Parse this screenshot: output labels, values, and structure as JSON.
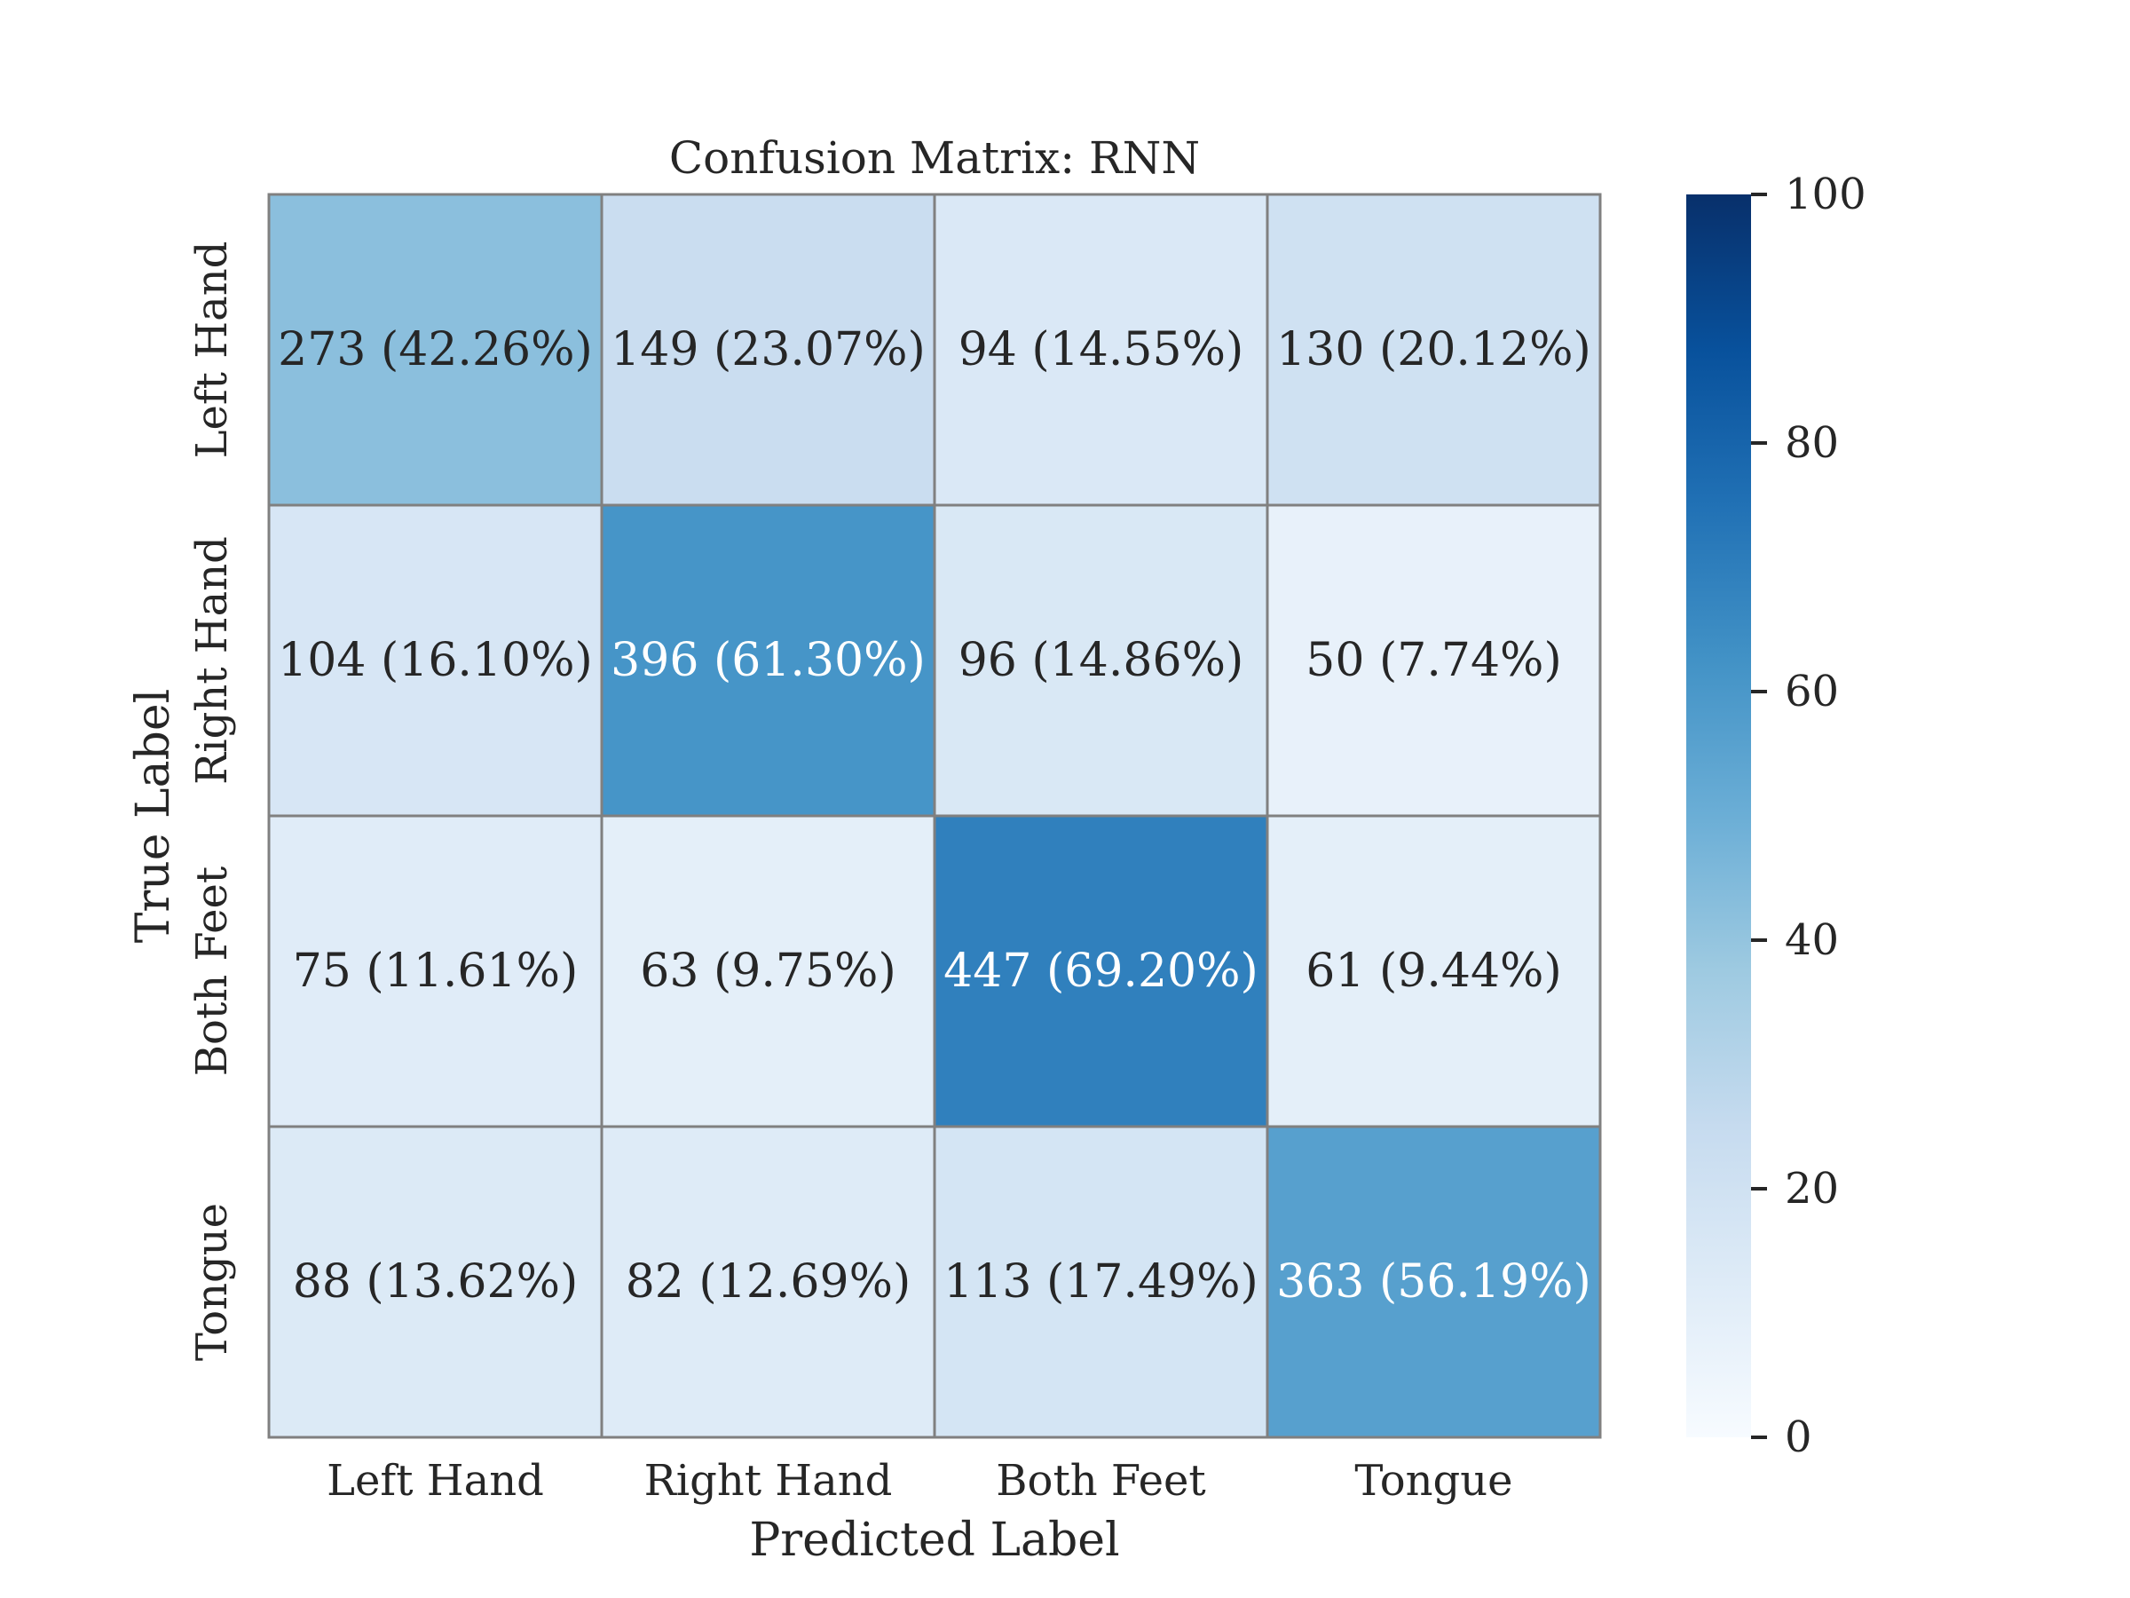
{
  "chart_data": {
    "type": "heatmap",
    "title": "Confusion Matrix: RNN",
    "xlabel": "Predicted Label",
    "ylabel": "True Label",
    "x_categories": [
      "Left Hand",
      "Right Hand",
      "Both Feet",
      "Tongue"
    ],
    "y_categories": [
      "Left Hand",
      "Right Hand",
      "Both Feet",
      "Tongue"
    ],
    "counts": [
      [
        273,
        149,
        94,
        130
      ],
      [
        104,
        396,
        96,
        50
      ],
      [
        75,
        63,
        447,
        61
      ],
      [
        88,
        82,
        113,
        363
      ]
    ],
    "cell_labels": [
      [
        "273 (42.26%)",
        "149 (23.07%)",
        "94 (14.55%)",
        "130 (20.12%)"
      ],
      [
        "104 (16.10%)",
        "396 (61.30%)",
        "96 (14.86%)",
        "50 (7.74%)"
      ],
      [
        "75 (11.61%)",
        "63 (9.75%)",
        "447 (69.20%)",
        "61 (9.44%)"
      ],
      [
        "88 (13.62%)",
        "82 (12.69%)",
        "113 (17.49%)",
        "363 (56.19%)"
      ]
    ],
    "percentages": [
      [
        42.26,
        23.07,
        14.55,
        20.12
      ],
      [
        16.1,
        61.3,
        14.86,
        7.74
      ],
      [
        11.61,
        9.75,
        69.2,
        9.44
      ],
      [
        13.62,
        12.69,
        17.49,
        56.19
      ]
    ],
    "colorbar": {
      "range": [
        0,
        100
      ],
      "ticks": [
        "0",
        "20",
        "40",
        "60",
        "80",
        "100"
      ],
      "colormap": "Blues"
    },
    "grid": true,
    "colors": {
      "cell_border": "#808080",
      "text_dark": "#262626",
      "text_light": "#ffffff"
    }
  }
}
